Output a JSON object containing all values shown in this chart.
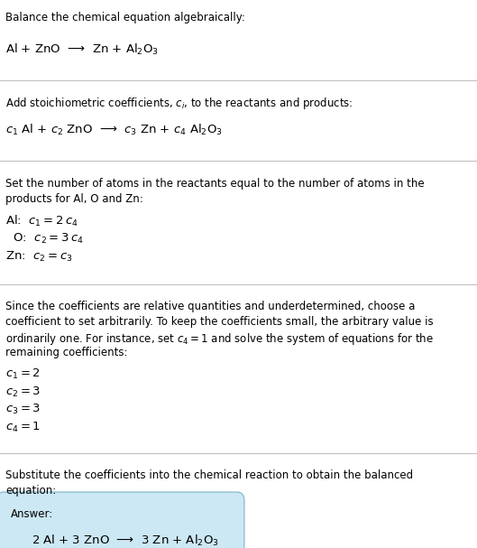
{
  "title_line": "Balance the chemical equation algebraically:",
  "reaction_original": "Al + ZnO  ⟶  Zn + Al$_2$O$_3$",
  "section1_intro": "Add stoichiometric coefficients, $c_i$, to the reactants and products:",
  "reaction_coeffs": "$c_1$ Al + $c_2$ ZnO  ⟶  $c_3$ Zn + $c_4$ Al$_2$O$_3$",
  "section2_intro_1": "Set the number of atoms in the reactants equal to the number of atoms in the",
  "section2_intro_2": "products for Al, O and Zn:",
  "atom_eq_al": "Al:  $c_1 = 2\\,c_4$",
  "atom_eq_o": "  O:  $c_2 = 3\\,c_4$",
  "atom_eq_zn": "Zn:  $c_2 = c_3$",
  "section3_intro_1": "Since the coefficients are relative quantities and underdetermined, choose a",
  "section3_intro_2": "coefficient to set arbitrarily. To keep the coefficients small, the arbitrary value is",
  "section3_intro_3": "ordinarily one. For instance, set $c_4 = 1$ and solve the system of equations for the",
  "section3_intro_4": "remaining coefficients:",
  "coeff1": "$c_1 = 2$",
  "coeff2": "$c_2 = 3$",
  "coeff3": "$c_3 = 3$",
  "coeff4": "$c_4 = 1$",
  "section4_intro_1": "Substitute the coefficients into the chemical reaction to obtain the balanced",
  "section4_intro_2": "equation:",
  "answer_label": "Answer:",
  "answer_equation": "2 Al + 3 ZnO  ⟶  3 Zn + Al$_2$O$_3$",
  "answer_box_color": "#cce8f4",
  "answer_box_border": "#8bbfd4",
  "divider_color": "#bbbbbb",
  "text_color": "#000000",
  "background_color": "#ffffff",
  "fs_body": 8.5,
  "fs_math": 9.5,
  "lm": 0.012
}
